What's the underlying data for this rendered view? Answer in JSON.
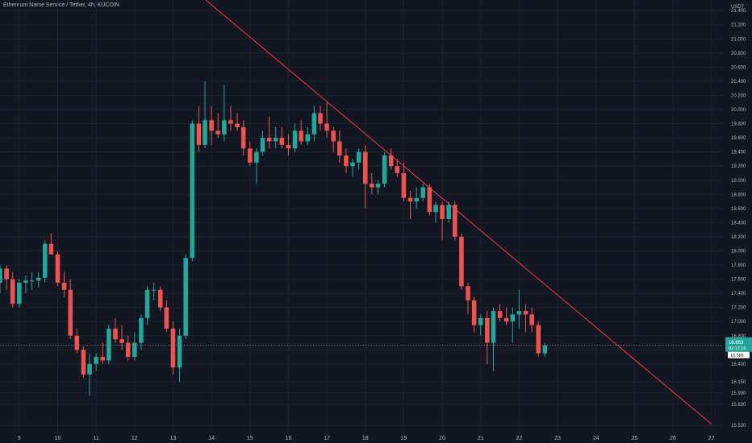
{
  "header": {
    "title": "Ethereum Name Service / Tether, 4h, KUCOIN"
  },
  "colors": {
    "background": "#131722",
    "grid": "#1e222d",
    "axis_text": "#b2b5be",
    "bull": "#26a69a",
    "bear": "#ef5350",
    "trendline": "#f23645",
    "price_line": "#787b86",
    "price_badge": "#26a69a",
    "price_badge_alt": "#ffffff"
  },
  "price_axis": {
    "currency": "USDT",
    "last_price_label": "16.663",
    "countdown_label": "02:17:16",
    "prev_close_label": "16.585"
  },
  "chart_data": {
    "type": "candlestick",
    "x_ticks": [
      "9",
      "10",
      "11",
      "12",
      "13",
      "14",
      "15",
      "16",
      "17",
      "18",
      "19",
      "20",
      "21",
      "22",
      "23",
      "24",
      "25",
      "26",
      "27"
    ],
    "x_range": [
      8.5,
      27.3
    ],
    "y_ticks": [
      "21.400",
      "21.200",
      "21.000",
      "20.800",
      "20.600",
      "20.400",
      "20.200",
      "20.000",
      "19.800",
      "19.600",
      "19.400",
      "19.200",
      "19.000",
      "18.800",
      "18.600",
      "18.400",
      "18.200",
      "18.000",
      "17.800",
      "17.600",
      "17.400",
      "17.200",
      "17.000",
      "16.800",
      "16.600",
      "16.400",
      "16.150",
      "15.990",
      "15.830",
      "15.530"
    ],
    "y_range": [
      15.43,
      21.55
    ],
    "grid": true,
    "last_price": 16.663,
    "trendline": {
      "start": [
        13.85,
        21.55
      ],
      "end": [
        27.0,
        15.55
      ]
    },
    "candles": [
      {
        "t": 8.5,
        "o": 17.55,
        "h": 17.8,
        "l": 17.4,
        "c": 17.75
      },
      {
        "t": 8.67,
        "o": 17.75,
        "h": 17.8,
        "l": 17.45,
        "c": 17.6
      },
      {
        "t": 8.83,
        "o": 17.6,
        "h": 17.7,
        "l": 17.2,
        "c": 17.25
      },
      {
        "t": 9.0,
        "o": 17.25,
        "h": 17.6,
        "l": 17.2,
        "c": 17.55
      },
      {
        "t": 9.17,
        "o": 17.55,
        "h": 17.65,
        "l": 17.4,
        "c": 17.58
      },
      {
        "t": 9.33,
        "o": 17.58,
        "h": 17.7,
        "l": 17.45,
        "c": 17.58
      },
      {
        "t": 9.5,
        "o": 17.58,
        "h": 17.7,
        "l": 17.48,
        "c": 17.62
      },
      {
        "t": 9.67,
        "o": 17.62,
        "h": 18.15,
        "l": 17.55,
        "c": 18.1
      },
      {
        "t": 9.83,
        "o": 18.1,
        "h": 18.25,
        "l": 17.95,
        "c": 17.95
      },
      {
        "t": 10.0,
        "o": 17.95,
        "h": 18.0,
        "l": 17.5,
        "c": 17.55
      },
      {
        "t": 10.17,
        "o": 17.55,
        "h": 17.7,
        "l": 17.35,
        "c": 17.45
      },
      {
        "t": 10.33,
        "o": 17.45,
        "h": 17.6,
        "l": 16.75,
        "c": 16.8
      },
      {
        "t": 10.5,
        "o": 16.8,
        "h": 16.9,
        "l": 16.55,
        "c": 16.6
      },
      {
        "t": 10.67,
        "o": 16.6,
        "h": 16.65,
        "l": 16.2,
        "c": 16.25
      },
      {
        "t": 10.83,
        "o": 16.25,
        "h": 16.55,
        "l": 15.95,
        "c": 16.4
      },
      {
        "t": 11.0,
        "o": 16.4,
        "h": 16.55,
        "l": 16.3,
        "c": 16.5
      },
      {
        "t": 11.17,
        "o": 16.5,
        "h": 16.7,
        "l": 16.4,
        "c": 16.45
      },
      {
        "t": 11.33,
        "o": 16.45,
        "h": 16.95,
        "l": 16.4,
        "c": 16.9
      },
      {
        "t": 11.5,
        "o": 16.9,
        "h": 17.05,
        "l": 16.7,
        "c": 16.75
      },
      {
        "t": 11.67,
        "o": 16.75,
        "h": 16.95,
        "l": 16.6,
        "c": 16.7
      },
      {
        "t": 11.83,
        "o": 16.7,
        "h": 16.8,
        "l": 16.45,
        "c": 16.5
      },
      {
        "t": 12.0,
        "o": 16.5,
        "h": 16.85,
        "l": 16.45,
        "c": 16.7
      },
      {
        "t": 12.17,
        "o": 16.7,
        "h": 17.1,
        "l": 16.6,
        "c": 17.05
      },
      {
        "t": 12.33,
        "o": 17.05,
        "h": 17.5,
        "l": 16.95,
        "c": 17.45
      },
      {
        "t": 12.5,
        "o": 17.45,
        "h": 17.55,
        "l": 17.3,
        "c": 17.45
      },
      {
        "t": 12.67,
        "o": 17.45,
        "h": 17.5,
        "l": 17.15,
        "c": 17.2
      },
      {
        "t": 12.83,
        "o": 17.2,
        "h": 17.3,
        "l": 16.85,
        "c": 16.9
      },
      {
        "t": 13.0,
        "o": 16.9,
        "h": 17.0,
        "l": 16.25,
        "c": 16.35
      },
      {
        "t": 13.17,
        "o": 16.35,
        "h": 16.9,
        "l": 16.15,
        "c": 16.8
      },
      {
        "t": 13.33,
        "o": 16.8,
        "h": 17.95,
        "l": 16.75,
        "c": 17.9
      },
      {
        "t": 13.5,
        "o": 17.9,
        "h": 19.85,
        "l": 17.85,
        "c": 19.8
      },
      {
        "t": 13.67,
        "o": 19.8,
        "h": 20.05,
        "l": 19.4,
        "c": 19.5
      },
      {
        "t": 13.83,
        "o": 19.5,
        "h": 20.4,
        "l": 19.45,
        "c": 19.85
      },
      {
        "t": 14.0,
        "o": 19.85,
        "h": 20.05,
        "l": 19.5,
        "c": 19.7
      },
      {
        "t": 14.17,
        "o": 19.7,
        "h": 19.95,
        "l": 19.6,
        "c": 19.65
      },
      {
        "t": 14.33,
        "o": 19.65,
        "h": 20.35,
        "l": 19.55,
        "c": 19.85
      },
      {
        "t": 14.5,
        "o": 19.85,
        "h": 20.05,
        "l": 19.7,
        "c": 19.8
      },
      {
        "t": 14.67,
        "o": 19.8,
        "h": 19.95,
        "l": 19.7,
        "c": 19.75
      },
      {
        "t": 14.83,
        "o": 19.75,
        "h": 19.85,
        "l": 19.35,
        "c": 19.45
      },
      {
        "t": 15.0,
        "o": 19.45,
        "h": 19.55,
        "l": 19.2,
        "c": 19.25
      },
      {
        "t": 15.17,
        "o": 19.25,
        "h": 19.45,
        "l": 18.95,
        "c": 19.4
      },
      {
        "t": 15.33,
        "o": 19.4,
        "h": 19.7,
        "l": 19.35,
        "c": 19.6
      },
      {
        "t": 15.5,
        "o": 19.6,
        "h": 19.9,
        "l": 19.45,
        "c": 19.55
      },
      {
        "t": 15.67,
        "o": 19.55,
        "h": 19.75,
        "l": 19.45,
        "c": 19.6
      },
      {
        "t": 15.83,
        "o": 19.6,
        "h": 19.75,
        "l": 19.45,
        "c": 19.5
      },
      {
        "t": 16.0,
        "o": 19.5,
        "h": 19.65,
        "l": 19.35,
        "c": 19.45
      },
      {
        "t": 16.17,
        "o": 19.45,
        "h": 19.8,
        "l": 19.4,
        "c": 19.7
      },
      {
        "t": 16.33,
        "o": 19.7,
        "h": 19.85,
        "l": 19.5,
        "c": 19.55
      },
      {
        "t": 16.5,
        "o": 19.55,
        "h": 19.75,
        "l": 19.5,
        "c": 19.65
      },
      {
        "t": 16.67,
        "o": 19.65,
        "h": 20.05,
        "l": 19.55,
        "c": 19.95
      },
      {
        "t": 16.83,
        "o": 19.95,
        "h": 20.05,
        "l": 19.7,
        "c": 19.8
      },
      {
        "t": 17.0,
        "o": 19.8,
        "h": 20.1,
        "l": 19.6,
        "c": 19.7
      },
      {
        "t": 17.17,
        "o": 19.7,
        "h": 19.75,
        "l": 19.4,
        "c": 19.55
      },
      {
        "t": 17.33,
        "o": 19.55,
        "h": 19.7,
        "l": 19.25,
        "c": 19.35
      },
      {
        "t": 17.5,
        "o": 19.35,
        "h": 19.45,
        "l": 19.1,
        "c": 19.2
      },
      {
        "t": 17.67,
        "o": 19.2,
        "h": 19.3,
        "l": 19.05,
        "c": 19.25
      },
      {
        "t": 17.83,
        "o": 19.25,
        "h": 19.45,
        "l": 19.15,
        "c": 19.4
      },
      {
        "t": 18.0,
        "o": 19.4,
        "h": 19.5,
        "l": 18.6,
        "c": 18.95
      },
      {
        "t": 18.17,
        "o": 18.95,
        "h": 19.1,
        "l": 18.8,
        "c": 18.9
      },
      {
        "t": 18.33,
        "o": 18.9,
        "h": 19.0,
        "l": 18.8,
        "c": 18.95
      },
      {
        "t": 18.5,
        "o": 18.95,
        "h": 19.4,
        "l": 18.9,
        "c": 19.35
      },
      {
        "t": 18.67,
        "o": 19.35,
        "h": 19.45,
        "l": 19.15,
        "c": 19.2
      },
      {
        "t": 18.83,
        "o": 19.2,
        "h": 19.3,
        "l": 19.05,
        "c": 19.1
      },
      {
        "t": 19.0,
        "o": 19.1,
        "h": 19.25,
        "l": 18.7,
        "c": 18.75
      },
      {
        "t": 19.17,
        "o": 18.75,
        "h": 18.85,
        "l": 18.45,
        "c": 18.7
      },
      {
        "t": 19.33,
        "o": 18.7,
        "h": 18.9,
        "l": 18.6,
        "c": 18.75
      },
      {
        "t": 19.5,
        "o": 18.75,
        "h": 18.95,
        "l": 18.7,
        "c": 18.9
      },
      {
        "t": 19.67,
        "o": 18.9,
        "h": 18.95,
        "l": 18.5,
        "c": 18.55
      },
      {
        "t": 19.83,
        "o": 18.55,
        "h": 18.7,
        "l": 18.4,
        "c": 18.65
      },
      {
        "t": 20.0,
        "o": 18.65,
        "h": 18.7,
        "l": 18.15,
        "c": 18.45
      },
      {
        "t": 20.17,
        "o": 18.45,
        "h": 18.7,
        "l": 18.4,
        "c": 18.65
      },
      {
        "t": 20.33,
        "o": 18.65,
        "h": 18.7,
        "l": 18.15,
        "c": 18.2
      },
      {
        "t": 20.5,
        "o": 18.2,
        "h": 18.25,
        "l": 17.45,
        "c": 17.5
      },
      {
        "t": 20.67,
        "o": 17.5,
        "h": 17.55,
        "l": 17.1,
        "c": 17.3
      },
      {
        "t": 20.83,
        "o": 17.3,
        "h": 17.35,
        "l": 16.85,
        "c": 16.95
      },
      {
        "t": 21.0,
        "o": 16.95,
        "h": 17.1,
        "l": 16.8,
        "c": 17.05
      },
      {
        "t": 21.17,
        "o": 17.05,
        "h": 17.15,
        "l": 16.4,
        "c": 16.7
      },
      {
        "t": 21.33,
        "o": 16.7,
        "h": 17.2,
        "l": 16.3,
        "c": 17.15
      },
      {
        "t": 21.5,
        "o": 17.15,
        "h": 17.25,
        "l": 17.0,
        "c": 17.05
      },
      {
        "t": 21.67,
        "o": 17.05,
        "h": 17.2,
        "l": 16.95,
        "c": 17.0
      },
      {
        "t": 21.83,
        "o": 17.0,
        "h": 17.2,
        "l": 16.7,
        "c": 17.1
      },
      {
        "t": 22.0,
        "o": 17.1,
        "h": 17.45,
        "l": 16.9,
        "c": 17.15
      },
      {
        "t": 22.17,
        "o": 17.15,
        "h": 17.25,
        "l": 16.85,
        "c": 17.1
      },
      {
        "t": 22.33,
        "o": 17.1,
        "h": 17.2,
        "l": 16.85,
        "c": 16.95
      },
      {
        "t": 22.5,
        "o": 16.95,
        "h": 17.0,
        "l": 16.5,
        "c": 16.55
      },
      {
        "t": 22.67,
        "o": 16.55,
        "h": 16.7,
        "l": 16.5,
        "c": 16.66
      }
    ]
  }
}
